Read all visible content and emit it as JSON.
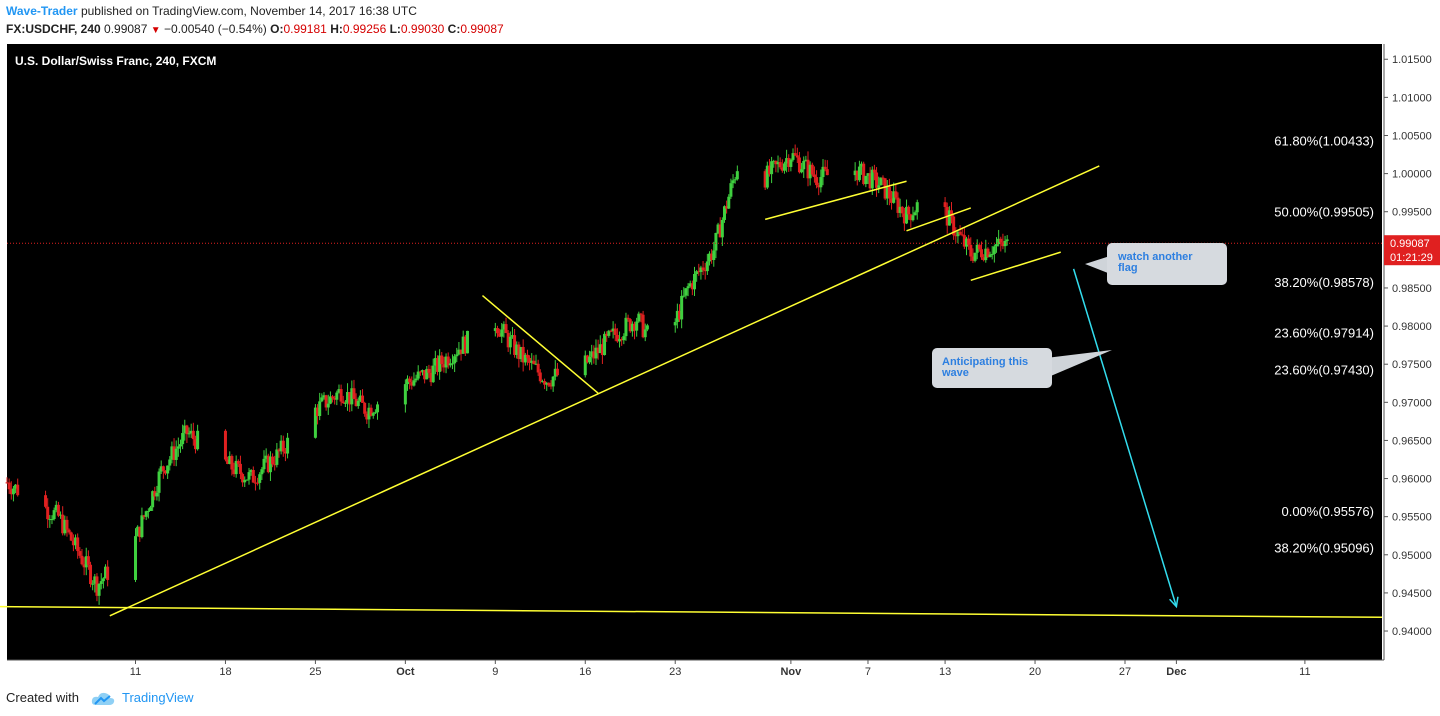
{
  "header": {
    "author": "Wave-Trader",
    "published_text": "published on TradingView.com, November 14, 2017 16:38 UTC",
    "symbol": "FX:USDCHF, 240",
    "last": "0.99087",
    "change": "−0.00540 (−0.54%)",
    "o_label": "O:",
    "o_value": "0.99181",
    "h_label": "H:",
    "h_value": "0.99256",
    "l_label": "L:",
    "l_value": "0.99030",
    "c_label": "C:",
    "c_value": "0.99087"
  },
  "footer": {
    "created_with": "Created with",
    "brand": "TradingView"
  },
  "chart_data": {
    "type": "candlestick",
    "title": "U.S. Dollar/Swiss Franc, 240, FXCM",
    "background": "#000000",
    "colors": {
      "up": "#3fd03f",
      "down": "#e02020",
      "trendline": "#ffff33",
      "projection": "#33ddee",
      "price_line": "#e02020"
    },
    "y_ticks": [
      "1.01500",
      "1.01000",
      "1.00500",
      "1.00000",
      "0.99500",
      "0.99000",
      "0.98500",
      "0.98000",
      "0.97500",
      "0.97000",
      "0.96500",
      "0.96000",
      "0.95500",
      "0.95000",
      "0.94500",
      "0.94000"
    ],
    "ylim": [
      0.9362,
      1.017
    ],
    "x_ticks": [
      {
        "label": "11",
        "date": "2017-09-11",
        "bold": false
      },
      {
        "label": "18",
        "date": "2017-09-18",
        "bold": false
      },
      {
        "label": "25",
        "date": "2017-09-25",
        "bold": false
      },
      {
        "label": "Oct",
        "date": "2017-10-02",
        "bold": true
      },
      {
        "label": "9",
        "date": "2017-10-09",
        "bold": false
      },
      {
        "label": "16",
        "date": "2017-10-16",
        "bold": false
      },
      {
        "label": "23",
        "date": "2017-10-23",
        "bold": false
      },
      {
        "label": "Nov",
        "date": "2017-11-01",
        "bold": true
      },
      {
        "label": "7",
        "date": "2017-11-07",
        "bold": false
      },
      {
        "label": "13",
        "date": "2017-11-13",
        "bold": false
      },
      {
        "label": "20",
        "date": "2017-11-20",
        "bold": false
      },
      {
        "label": "27",
        "date": "2017-11-27",
        "bold": false
      },
      {
        "label": "Dec",
        "date": "2017-12-01",
        "bold": true
      },
      {
        "label": "11",
        "date": "2017-12-11",
        "bold": false
      }
    ],
    "xlim": [
      "2017-09-01",
      "2017-12-17"
    ],
    "current_price": "0.99087",
    "countdown": "01:21:29",
    "fib_levels": [
      {
        "label": "61.80%(1.00433)",
        "price": 1.00433
      },
      {
        "label": "50.00%(0.99505)",
        "price": 0.99505
      },
      {
        "label": "38.20%(0.98578)",
        "price": 0.98578
      },
      {
        "label": "23.60%(0.97914)",
        "price": 0.97914
      },
      {
        "label": "23.60%(0.97430)",
        "price": 0.9743
      },
      {
        "label": "0.00%(0.95576)",
        "price": 0.95576
      },
      {
        "label": "38.20%(0.95096)",
        "price": 0.95096
      }
    ],
    "path_points": [
      [
        "2017-09-01",
        0.9595
      ],
      [
        "2017-09-05",
        0.955
      ],
      [
        "2017-09-08",
        0.946
      ],
      [
        "2017-09-11",
        0.952
      ],
      [
        "2017-09-13",
        0.961
      ],
      [
        "2017-09-15",
        0.966
      ],
      [
        "2017-09-18",
        0.962
      ],
      [
        "2017-09-20",
        0.96
      ],
      [
        "2017-09-22",
        0.963
      ],
      [
        "2017-09-25",
        0.969
      ],
      [
        "2017-09-27",
        0.9715
      ],
      [
        "2017-09-29",
        0.969
      ],
      [
        "2017-10-02",
        0.9725
      ],
      [
        "2017-10-04",
        0.974
      ],
      [
        "2017-10-06",
        0.977
      ],
      [
        "2017-10-09",
        0.9805
      ],
      [
        "2017-10-11",
        0.976
      ],
      [
        "2017-10-13",
        0.973
      ],
      [
        "2017-10-16",
        0.975
      ],
      [
        "2017-10-18",
        0.9785
      ],
      [
        "2017-10-20",
        0.981
      ],
      [
        "2017-10-22",
        0.976
      ],
      [
        "2017-10-24",
        0.985
      ],
      [
        "2017-10-26",
        0.99
      ],
      [
        "2017-10-28",
        1.002
      ],
      [
        "2017-10-30",
        0.9995
      ],
      [
        "2017-11-01",
        1.0025
      ],
      [
        "2017-11-03",
        0.9995
      ],
      [
        "2017-11-06",
        1.0005
      ],
      [
        "2017-11-08",
        0.9985
      ],
      [
        "2017-11-10",
        0.9945
      ],
      [
        "2017-11-12",
        0.9975
      ],
      [
        "2017-11-14",
        0.992
      ],
      [
        "2017-11-15",
        0.9895
      ],
      [
        "2017-11-17",
        0.9905
      ],
      [
        "2017-11-19",
        0.9908
      ]
    ],
    "trendlines": [
      {
        "from": [
          "2017-09-09",
          0.942
        ],
        "to": [
          "2017-11-25",
          1.001
        ]
      },
      {
        "from": [
          "2017-08-31",
          0.9432
        ],
        "to": [
          "2017-12-17",
          0.9418
        ]
      },
      {
        "from": [
          "2017-10-08",
          0.984
        ],
        "to": [
          "2017-10-17",
          0.9712
        ]
      },
      {
        "from": [
          "2017-10-30",
          0.994
        ],
        "to": [
          "2017-11-10",
          0.999
        ]
      },
      {
        "from": [
          "2017-11-10",
          0.9925
        ],
        "to": [
          "2017-11-15",
          0.9955
        ]
      },
      {
        "from": [
          "2017-11-15",
          0.986
        ],
        "to": [
          "2017-11-22",
          0.9897
        ]
      }
    ],
    "projection": {
      "from": [
        "2017-11-23",
        0.9875
      ],
      "to": [
        "2017-12-01",
        0.9432
      ]
    },
    "annotations": [
      {
        "text": "watch another flag",
        "lines": [
          "watch another",
          "flag"
        ]
      },
      {
        "text": "Anticipating this wave",
        "lines": [
          "Anticipating this",
          "wave"
        ]
      }
    ]
  }
}
